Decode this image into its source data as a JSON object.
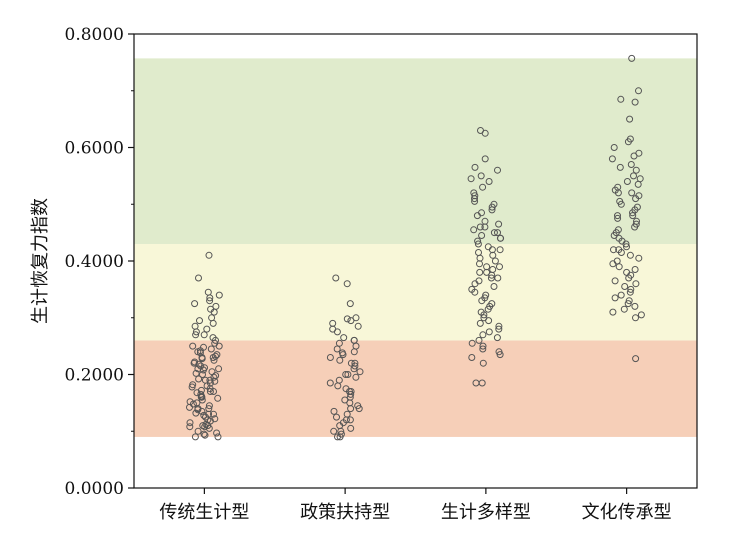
{
  "chart_data": {
    "type": "scatter",
    "title": "",
    "xlabel": "",
    "ylabel": "生计恢复力指数",
    "ylim": [
      0,
      0.8
    ],
    "y_ticks": [
      "0.0000",
      "0.2000",
      "0.4000",
      "0.6000",
      "0.8000"
    ],
    "y_tick_values": [
      0,
      0.2,
      0.4,
      0.6,
      0.8
    ],
    "categories": [
      "传统生计型",
      "政策扶持型",
      "生计多样型",
      "文化传承型"
    ],
    "bands": [
      {
        "from": 0.09,
        "to": 0.26,
        "color": "#f6cfb8"
      },
      {
        "from": 0.26,
        "to": 0.43,
        "color": "#f8f7d8"
      },
      {
        "from": 0.43,
        "to": 0.757,
        "color": "#e0ebcc"
      }
    ],
    "marker": {
      "stroke": "#555555",
      "fill": "none"
    },
    "grid": false,
    "series": [
      {
        "category": "传统生计型",
        "values": [
          0.41,
          0.37,
          0.345,
          0.34,
          0.335,
          0.33,
          0.325,
          0.32,
          0.315,
          0.31,
          0.3,
          0.295,
          0.29,
          0.285,
          0.28,
          0.275,
          0.27,
          0.265,
          0.26,
          0.255,
          0.25,
          0.248,
          0.245,
          0.242,
          0.24,
          0.238,
          0.235,
          0.232,
          0.23,
          0.228,
          0.225,
          0.222,
          0.22,
          0.218,
          0.215,
          0.212,
          0.21,
          0.208,
          0.205,
          0.202,
          0.2,
          0.198,
          0.195,
          0.192,
          0.19,
          0.188,
          0.185,
          0.182,
          0.18,
          0.178,
          0.175,
          0.172,
          0.17,
          0.168,
          0.165,
          0.162,
          0.16,
          0.158,
          0.155,
          0.152,
          0.15,
          0.148,
          0.145,
          0.142,
          0.14,
          0.138,
          0.135,
          0.132,
          0.13,
          0.128,
          0.125,
          0.122,
          0.12,
          0.118,
          0.115,
          0.112,
          0.11,
          0.108,
          0.105,
          0.1,
          0.095,
          0.09,
          0.09,
          0.093,
          0.097,
          0.11,
          0.108,
          0.13,
          0.14,
          0.16,
          0.17,
          0.19,
          0.21,
          0.23,
          0.25,
          0.27
        ]
      },
      {
        "category": "政策扶持型",
        "values": [
          0.37,
          0.36,
          0.325,
          0.3,
          0.298,
          0.295,
          0.29,
          0.285,
          0.28,
          0.275,
          0.265,
          0.26,
          0.255,
          0.25,
          0.245,
          0.24,
          0.238,
          0.235,
          0.23,
          0.225,
          0.22,
          0.215,
          0.21,
          0.205,
          0.2,
          0.195,
          0.19,
          0.185,
          0.18,
          0.175,
          0.17,
          0.165,
          0.16,
          0.155,
          0.15,
          0.145,
          0.14,
          0.135,
          0.13,
          0.125,
          0.12,
          0.115,
          0.11,
          0.105,
          0.1,
          0.095,
          0.09,
          0.09,
          0.1,
          0.12,
          0.14,
          0.17,
          0.2,
          0.22,
          0.26
        ]
      },
      {
        "category": "生计多样型",
        "values": [
          0.63,
          0.625,
          0.58,
          0.565,
          0.56,
          0.55,
          0.545,
          0.54,
          0.53,
          0.52,
          0.515,
          0.51,
          0.505,
          0.5,
          0.495,
          0.49,
          0.485,
          0.48,
          0.47,
          0.465,
          0.46,
          0.455,
          0.45,
          0.445,
          0.44,
          0.435,
          0.43,
          0.425,
          0.42,
          0.415,
          0.41,
          0.405,
          0.4,
          0.395,
          0.39,
          0.385,
          0.38,
          0.375,
          0.37,
          0.365,
          0.36,
          0.355,
          0.35,
          0.345,
          0.34,
          0.335,
          0.33,
          0.325,
          0.32,
          0.315,
          0.31,
          0.305,
          0.3,
          0.295,
          0.29,
          0.285,
          0.28,
          0.275,
          0.27,
          0.265,
          0.26,
          0.255,
          0.25,
          0.245,
          0.24,
          0.235,
          0.23,
          0.22,
          0.185,
          0.185,
          0.37,
          0.38,
          0.39,
          0.42,
          0.44,
          0.45,
          0.46
        ]
      },
      {
        "category": "文化传承型",
        "values": [
          0.757,
          0.7,
          0.685,
          0.68,
          0.65,
          0.615,
          0.61,
          0.6,
          0.59,
          0.585,
          0.58,
          0.57,
          0.565,
          0.56,
          0.55,
          0.545,
          0.54,
          0.535,
          0.53,
          0.525,
          0.52,
          0.515,
          0.51,
          0.505,
          0.5,
          0.495,
          0.49,
          0.485,
          0.48,
          0.475,
          0.47,
          0.465,
          0.46,
          0.455,
          0.45,
          0.445,
          0.44,
          0.435,
          0.43,
          0.425,
          0.42,
          0.415,
          0.41,
          0.405,
          0.4,
          0.395,
          0.39,
          0.385,
          0.38,
          0.375,
          0.37,
          0.365,
          0.36,
          0.355,
          0.35,
          0.345,
          0.34,
          0.335,
          0.33,
          0.325,
          0.32,
          0.315,
          0.31,
          0.305,
          0.3,
          0.228,
          0.42,
          0.48,
          0.52
        ]
      }
    ]
  }
}
